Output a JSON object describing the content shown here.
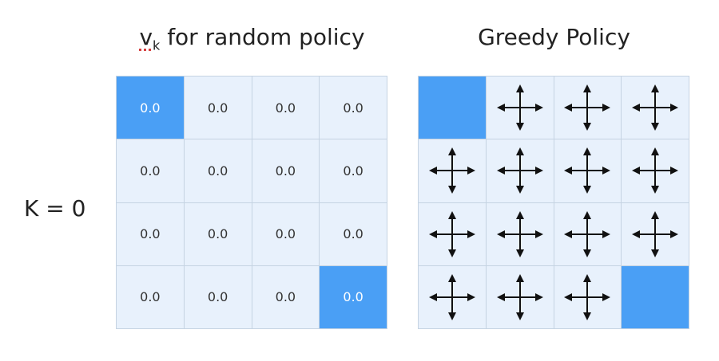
{
  "value_panel": {
    "title_symbol": "v",
    "title_subscript": "k",
    "title_rest": " for random policy"
  },
  "policy_panel": {
    "title": "Greedy Policy"
  },
  "iteration_label": "K = 0",
  "colors": {
    "terminal": "#4a9ff5",
    "cell": "#e8f1fc",
    "grid_line": "#c5d3e2",
    "arrow": "#111111"
  },
  "value_grid": [
    [
      "0.0",
      "0.0",
      "0.0",
      "0.0"
    ],
    [
      "0.0",
      "0.0",
      "0.0",
      "0.0"
    ],
    [
      "0.0",
      "0.0",
      "0.0",
      "0.0"
    ],
    [
      "0.0",
      "0.0",
      "0.0",
      "0.0"
    ]
  ],
  "terminal_cells": [
    [
      0,
      0
    ],
    [
      3,
      3
    ]
  ],
  "policy_grid": [
    [
      "terminal",
      "up-down-left-right",
      "up-down-left-right",
      "up-down-left-right"
    ],
    [
      "up-down-left-right",
      "up-down-left-right",
      "up-down-left-right",
      "up-down-left-right"
    ],
    [
      "up-down-left-right",
      "up-down-left-right",
      "up-down-left-right",
      "up-down-left-right"
    ],
    [
      "up-down-left-right",
      "up-down-left-right",
      "up-down-left-right",
      "terminal"
    ]
  ]
}
